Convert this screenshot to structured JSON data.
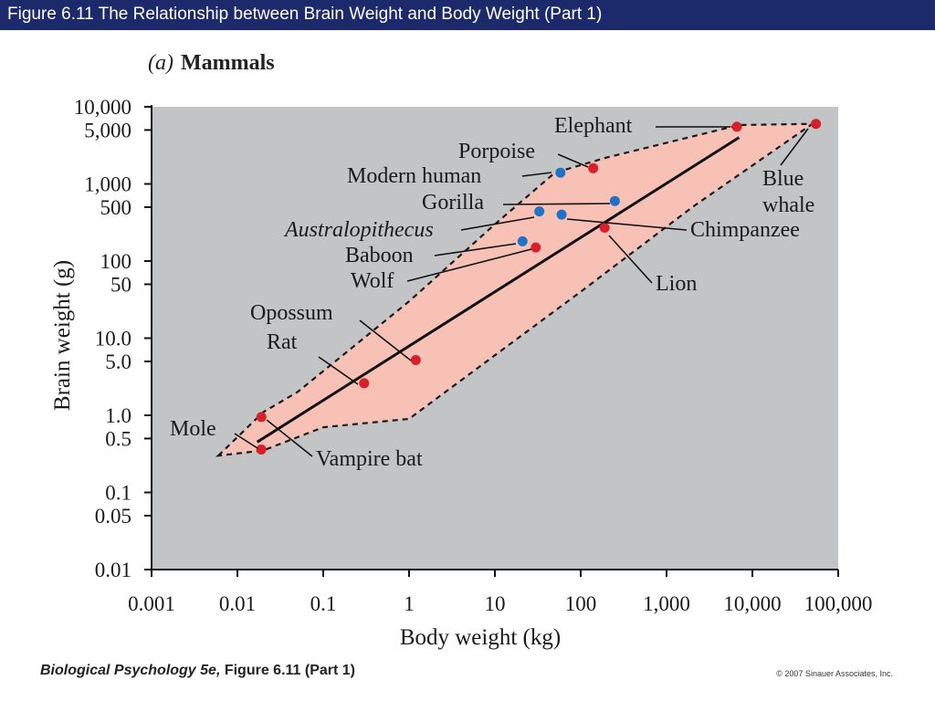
{
  "header": {
    "title": "Figure 6.11  The Relationship between Brain Weight and Body Weight (Part 1)"
  },
  "panel": {
    "letter": "(a)",
    "name": "Mammals"
  },
  "footer": {
    "book_title": "Biological Psychology 5e,",
    "figure_ref": " Figure 6.11 (Part 1)",
    "copyright": "© 2007 Sinauer Associates, Inc."
  },
  "colors": {
    "title_bar": "#1c2a6b",
    "plot_background": "#c3c4c6",
    "envelope_fill": "#f8c1b6",
    "red_points": "#d8202a",
    "blue_points": "#1f73c6",
    "regression_line": "#111111"
  },
  "chart_data": {
    "type": "scatter",
    "xlabel": "Body weight (kg)",
    "ylabel": "Brain weight (g)",
    "xscale": "log",
    "yscale": "log",
    "xlim": [
      0.001,
      100000
    ],
    "ylim": [
      0.01,
      10000
    ],
    "x_ticks": [
      0.001,
      0.01,
      0.1,
      1,
      10,
      100,
      1000,
      10000,
      100000
    ],
    "x_tick_labels": [
      "0.001",
      "0.01",
      "0.1",
      "1",
      "10",
      "100",
      "1,000",
      "10,000",
      "100,000"
    ],
    "y_ticks": [
      10000,
      5000,
      1000,
      500,
      100,
      50,
      10,
      5,
      1,
      0.5,
      0.1,
      0.05,
      0.01
    ],
    "y_tick_labels": [
      "10,000",
      "5,000",
      "1,000",
      "500",
      "100",
      "50",
      "10.0",
      "5.0",
      "1.0",
      "0.5",
      "0.1",
      "0.05",
      "0.01"
    ],
    "grid": false,
    "points": [
      {
        "label": "Elephant",
        "x": 6600,
        "y": 5500,
        "group": "red"
      },
      {
        "label": "Blue whale",
        "x": 55000,
        "y": 6000,
        "group": "red"
      },
      {
        "label": "Porpoise",
        "x": 140,
        "y": 1600,
        "group": "red"
      },
      {
        "label": "Modern human",
        "x": 58,
        "y": 1400,
        "group": "blue"
      },
      {
        "label": "Gorilla",
        "x": 250,
        "y": 600,
        "group": "blue"
      },
      {
        "label": "Australopithecus",
        "x": 33,
        "y": 440,
        "group": "blue"
      },
      {
        "label": "Chimpanzee",
        "x": 60,
        "y": 400,
        "group": "blue"
      },
      {
        "label": "Baboon",
        "x": 21,
        "y": 180,
        "group": "blue"
      },
      {
        "label": "Wolf",
        "x": 30,
        "y": 150,
        "group": "red"
      },
      {
        "label": "Lion",
        "x": 190,
        "y": 270,
        "group": "red"
      },
      {
        "label": "Opossum",
        "x": 1.2,
        "y": 5.2,
        "group": "red"
      },
      {
        "label": "Rat",
        "x": 0.3,
        "y": 2.6,
        "group": "red"
      },
      {
        "label": "Vampire bat",
        "x": 0.019,
        "y": 0.95,
        "group": "red"
      },
      {
        "label": "Mole",
        "x": 0.019,
        "y": 0.36,
        "group": "red"
      }
    ],
    "regression_line": [
      [
        0.017,
        0.45
      ],
      [
        7000,
        4000
      ]
    ],
    "envelope": [
      [
        0.006,
        0.3
      ],
      [
        0.02,
        1.1
      ],
      [
        0.05,
        2
      ],
      [
        1,
        30
      ],
      [
        10,
        300
      ],
      [
        50,
        1400
      ],
      [
        200,
        2200
      ],
      [
        7000,
        5800
      ],
      [
        50000,
        6000
      ],
      [
        2000,
        500
      ],
      [
        100,
        40
      ],
      [
        1,
        0.9
      ],
      [
        0.1,
        0.7
      ],
      [
        0.02,
        0.35
      ]
    ]
  }
}
